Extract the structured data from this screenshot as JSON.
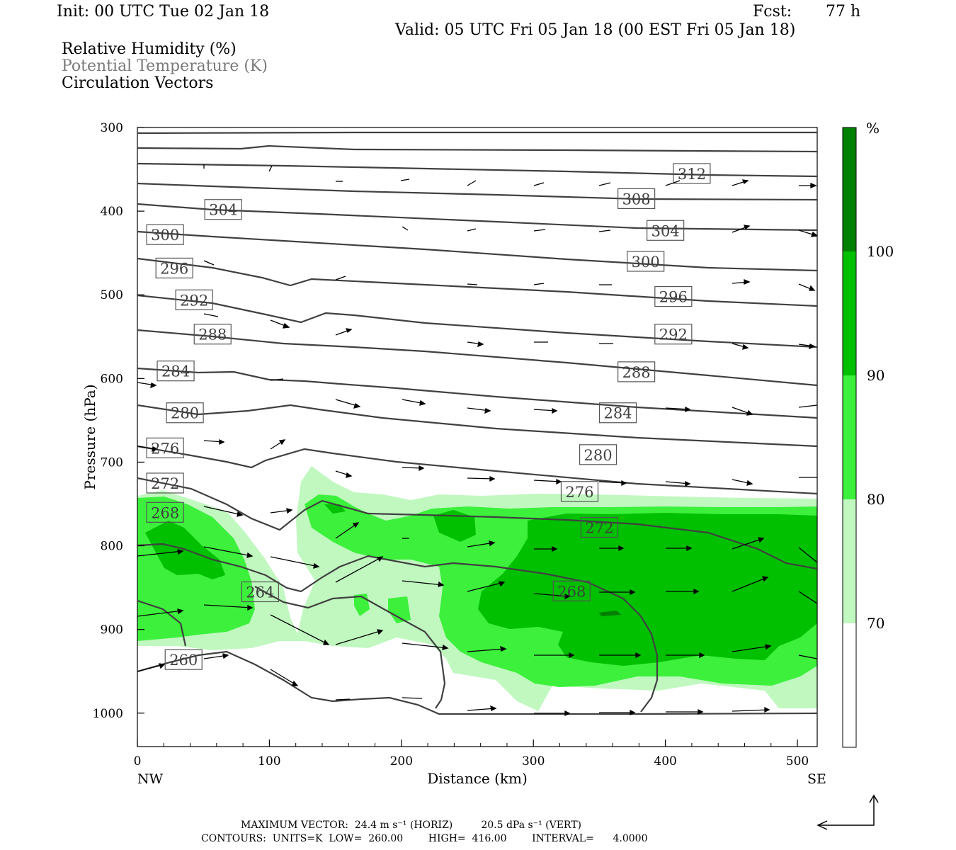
{
  "header": {
    "init": "Init: 00 UTC Tue 02 Jan 18",
    "fcst_label": "Fcst:",
    "fcst_value": "77 h",
    "valid": "Valid: 05 UTC Fri 05 Jan 18 (00 EST Fri 05 Jan 18)"
  },
  "legend": {
    "rh": "Relative Humidity (%)",
    "theta": "Potential Temperature (K)",
    "vectors": "Circulation Vectors"
  },
  "footer": {
    "max_vector": "MAXIMUM VECTOR:  24.4 m s⁻¹ (HORIZ)         20.5 dPa s⁻¹ (VERT)",
    "contours": "CONTOURS:  UNITS=K  LOW=  260.00        HIGH=  416.00        INTERVAL=      4.0000"
  },
  "colors": {
    "rh_70": "#c0f8c0",
    "rh_80": "#3cf03c",
    "rh_90": "#00c000",
    "rh_100": "#008000",
    "contour": "#404040"
  },
  "chart_data": {
    "type": "heatmap",
    "title": "",
    "xlabel": "Distance (km)",
    "ylabel": "Pressure (hPa)",
    "xlim": [
      0,
      515
    ],
    "ylim": [
      1040,
      300
    ],
    "x_ticks": [
      0,
      100,
      200,
      300,
      400,
      500
    ],
    "y_ticks": [
      300,
      400,
      500,
      600,
      700,
      800,
      900,
      1000
    ],
    "left_end_label": "NW",
    "right_end_label": "SE",
    "colorbar": {
      "unit": "%",
      "levels": [
        70,
        80,
        90,
        100
      ]
    },
    "contour_labels": [
      {
        "value": "312",
        "x": 420,
        "p": 355
      },
      {
        "value": "304",
        "x": 65,
        "p": 398
      },
      {
        "value": "308",
        "x": 378,
        "p": 385
      },
      {
        "value": "304",
        "x": 400,
        "p": 423
      },
      {
        "value": "300",
        "x": 21,
        "p": 428
      },
      {
        "value": "300",
        "x": 385,
        "p": 460
      },
      {
        "value": "296",
        "x": 28,
        "p": 468
      },
      {
        "value": "296",
        "x": 406,
        "p": 502
      },
      {
        "value": "292",
        "x": 43,
        "p": 506
      },
      {
        "value": "292",
        "x": 406,
        "p": 547
      },
      {
        "value": "288",
        "x": 57,
        "p": 547
      },
      {
        "value": "288",
        "x": 378,
        "p": 592
      },
      {
        "value": "284",
        "x": 29,
        "p": 591
      },
      {
        "value": "284",
        "x": 364,
        "p": 641
      },
      {
        "value": "280",
        "x": 36,
        "p": 641
      },
      {
        "value": "280",
        "x": 349,
        "p": 691
      },
      {
        "value": "276",
        "x": 21,
        "p": 683
      },
      {
        "value": "276",
        "x": 335,
        "p": 735
      },
      {
        "value": "272",
        "x": 21,
        "p": 725
      },
      {
        "value": "272",
        "x": 350,
        "p": 778
      },
      {
        "value": "268",
        "x": 21,
        "p": 760
      },
      {
        "value": "264",
        "x": 93,
        "p": 855
      },
      {
        "value": "268",
        "x": 329,
        "p": 854
      },
      {
        "value": "260",
        "x": 35,
        "p": 936
      }
    ]
  }
}
